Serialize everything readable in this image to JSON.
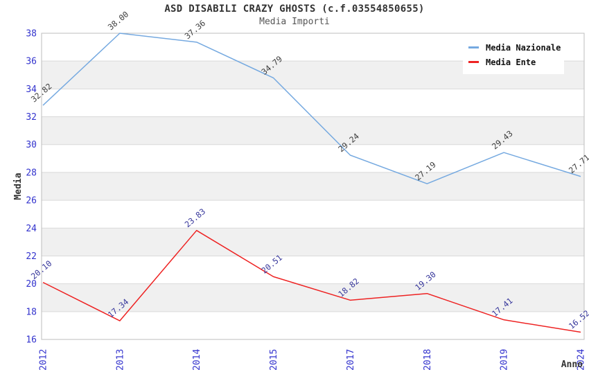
{
  "chart_data": {
    "type": "line",
    "title": "ASD DISABILI CRAZY GHOSTS (c.f.03554850655)",
    "subtitle": "Media Importi",
    "xlabel": "Anno",
    "ylabel": "Media",
    "categories": [
      "2012",
      "2013",
      "2014",
      "2015",
      "2017",
      "2018",
      "2019",
      "2024"
    ],
    "series": [
      {
        "name": "Media Nazionale",
        "values": [
          32.82,
          38.0,
          37.36,
          34.79,
          29.24,
          27.19,
          29.43,
          27.71
        ],
        "color": "#75a9e0",
        "label_color": "#3d3d3d"
      },
      {
        "name": "Media Ente",
        "values": [
          20.1,
          17.34,
          23.83,
          20.51,
          18.82,
          19.3,
          17.41,
          16.52
        ],
        "color": "#ee2222",
        "label_color": "#36369b"
      }
    ],
    "ylim": [
      16,
      38
    ],
    "ytick_step": 2,
    "grid": "horizontal-bands",
    "legend_position": "top-right",
    "colors": {
      "tick_label": "#3232cd",
      "band_fill": "#f0f0f0",
      "gridline": "#d9d9d9",
      "plot_border": "#bdbdbd",
      "title": "#333333",
      "subtitle": "#555555",
      "axis_title": "#333333",
      "legend_text": "#111111"
    }
  }
}
